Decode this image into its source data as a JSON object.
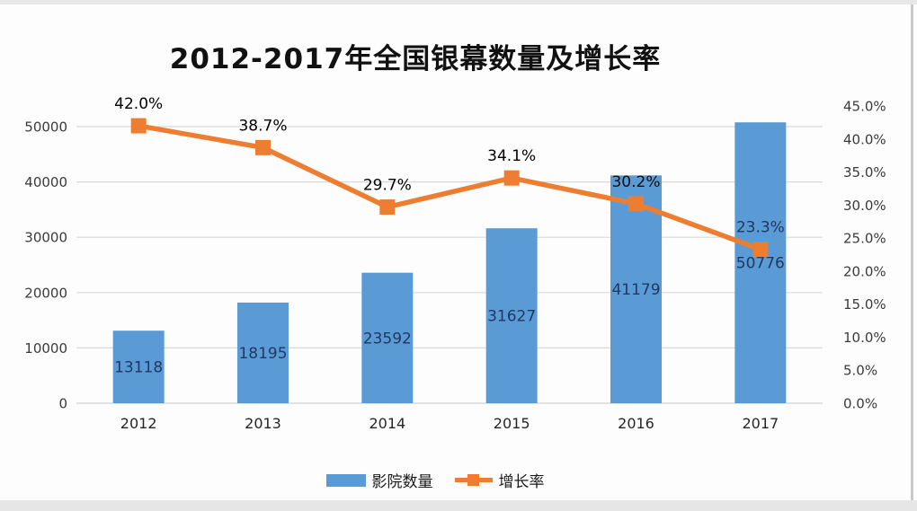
{
  "chart_data": {
    "type": "combo-bar-line",
    "title": "2012-2017年全国银幕数量及增长率",
    "categories": [
      "2012",
      "2013",
      "2014",
      "2015",
      "2016",
      "2017"
    ],
    "series": [
      {
        "name": "影院数量",
        "type": "bar",
        "axis": "left",
        "values": [
          13118,
          18195,
          23592,
          31627,
          41179,
          50776
        ],
        "labels": [
          "13118",
          "18195",
          "23592",
          "31627",
          "41179",
          "50776"
        ],
        "color": "#5b9bd5",
        "label_color": "#1f3864"
      },
      {
        "name": "增长率",
        "type": "line",
        "axis": "right",
        "values": [
          42.0,
          38.7,
          29.7,
          34.1,
          30.2,
          23.3
        ],
        "labels": [
          "42.0%",
          "38.7%",
          "29.7%",
          "34.1%",
          "30.2%",
          "23.3%"
        ],
        "label_colors": [
          "#000000",
          "#000000",
          "#000000",
          "#000000",
          "#0d0d0d",
          "#1f3864"
        ],
        "color": "#ed7d31",
        "marker": "square"
      }
    ],
    "left_axis": {
      "min": 0,
      "max": 50000,
      "step": 10000,
      "tick_labels": [
        "0",
        "10000",
        "20000",
        "30000",
        "40000",
        "50000"
      ]
    },
    "right_axis": {
      "min": 0,
      "max": 45,
      "step": 5,
      "tick_labels": [
        "0.0%",
        "5.0%",
        "10.0%",
        "15.0%",
        "20.0%",
        "25.0%",
        "30.0%",
        "35.0%",
        "40.0%",
        "45.0%"
      ]
    },
    "grid": true,
    "gridline_color": "#d9d9d9",
    "legend_position": "bottom"
  }
}
